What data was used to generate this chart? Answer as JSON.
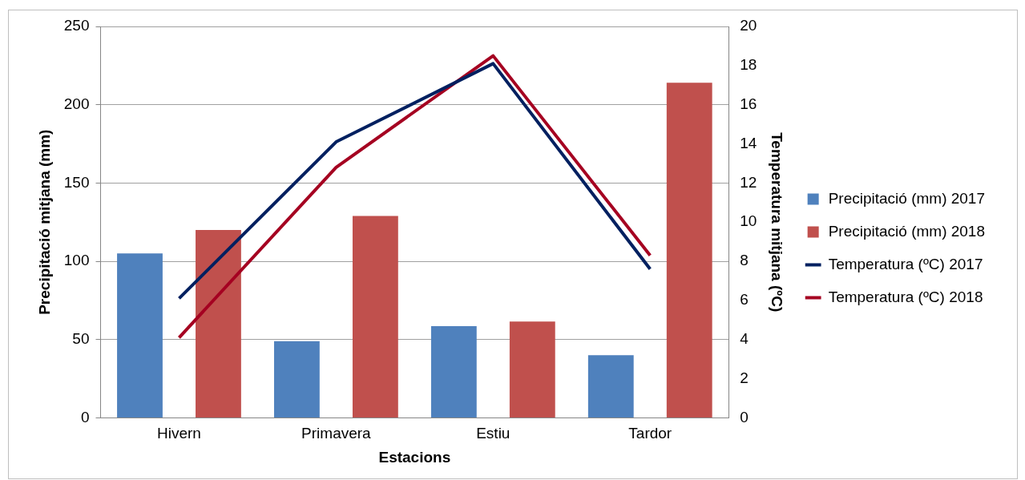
{
  "chart_data": {
    "type": "bar",
    "categories": [
      "Hivern",
      "Primavera",
      "Estiu",
      "Tardor"
    ],
    "xlabel": "Estacions",
    "ylabel": "Precipitació mitjana (mm)",
    "y2label": "Temperatura mitjana (ºC)",
    "ylim": [
      0,
      250
    ],
    "yticks": [
      0,
      50,
      100,
      150,
      200,
      250
    ],
    "y2lim": [
      0,
      20
    ],
    "y2ticks": [
      0,
      2,
      4,
      6,
      8,
      10,
      12,
      14,
      16,
      18,
      20
    ],
    "grid": "y",
    "legend": "right",
    "series": [
      {
        "name": "Precipitació (mm) 2017",
        "color": "#4f81bd",
        "values": [
          105,
          49,
          58.5,
          40
        ]
      },
      {
        "name": "Precipitació (mm) 2018",
        "color": "#c0504d",
        "values": [
          120,
          129,
          61.5,
          214
        ]
      },
      {
        "name": "Temperatura (ºC) 2017",
        "type": "line",
        "axis": "y2",
        "color": "#002060",
        "values": [
          6.1,
          14.1,
          18.1,
          7.6
        ]
      },
      {
        "name": "Temperatura (ºC) 2018",
        "type": "line",
        "axis": "y2",
        "color": "#a50021",
        "values": [
          4.1,
          12.8,
          18.5,
          8.3
        ]
      }
    ]
  }
}
